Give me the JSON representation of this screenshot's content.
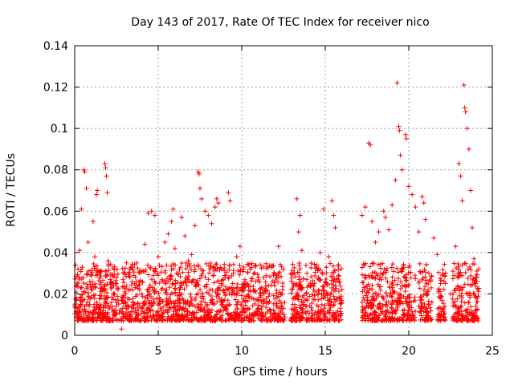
{
  "chart_data": {
    "type": "scatter",
    "title": "Day 143 of 2017, Rate Of TEC Index for receiver nico",
    "xlabel": "GPS time / hours",
    "ylabel": "ROTI / TECUs",
    "xlim": [
      0,
      25
    ],
    "ylim": [
      0,
      0.14
    ],
    "x_ticks": [
      "0",
      "5",
      "10",
      "15",
      "20",
      "25"
    ],
    "y_ticks": [
      "0",
      "0.02",
      "0.04",
      "0.06",
      "0.08",
      "0.1",
      "0.12",
      "0.14"
    ],
    "grid": true,
    "legend": "none",
    "marker": "+",
    "color": "#ff0000",
    "series": [
      {
        "points": [
          [
            0.1,
            0.018
          ],
          [
            0.2,
            0.032
          ],
          [
            0.3,
            0.041
          ],
          [
            0.4,
            0.061
          ],
          [
            0.5,
            0.028
          ],
          [
            0.55,
            0.08
          ],
          [
            0.6,
            0.079
          ],
          [
            0.7,
            0.071
          ],
          [
            0.8,
            0.045
          ],
          [
            0.9,
            0.015
          ],
          [
            1.0,
            0.022
          ],
          [
            1.1,
            0.055
          ],
          [
            1.2,
            0.038
          ],
          [
            1.3,
            0.068
          ],
          [
            1.35,
            0.07
          ],
          [
            1.5,
            0.031
          ],
          [
            1.6,
            0.019
          ],
          [
            1.8,
            0.083
          ],
          [
            1.85,
            0.081
          ],
          [
            1.9,
            0.077
          ],
          [
            1.95,
            0.069
          ],
          [
            2.0,
            0.036
          ],
          [
            2.2,
            0.025
          ],
          [
            2.4,
            0.012
          ],
          [
            2.6,
            0.017
          ],
          [
            2.8,
            0.003
          ],
          [
            2.9,
            0.009
          ],
          [
            3.0,
            0.021
          ],
          [
            3.1,
            0.035
          ],
          [
            3.3,
            0.028
          ],
          [
            3.5,
            0.016
          ],
          [
            3.7,
            0.024
          ],
          [
            3.9,
            0.03
          ],
          [
            4.0,
            0.02
          ],
          [
            4.2,
            0.044
          ],
          [
            4.4,
            0.059
          ],
          [
            4.6,
            0.06
          ],
          [
            4.8,
            0.058
          ],
          [
            5.0,
            0.038
          ],
          [
            5.2,
            0.022
          ],
          [
            5.4,
            0.045
          ],
          [
            5.6,
            0.049
          ],
          [
            5.8,
            0.055
          ],
          [
            5.9,
            0.061
          ],
          [
            6.0,
            0.042
          ],
          [
            6.2,
            0.03
          ],
          [
            6.4,
            0.057
          ],
          [
            6.6,
            0.048
          ],
          [
            6.8,
            0.036
          ],
          [
            7.0,
            0.039
          ],
          [
            7.2,
            0.053
          ],
          [
            7.4,
            0.079
          ],
          [
            7.45,
            0.078
          ],
          [
            7.5,
            0.071
          ],
          [
            7.6,
            0.066
          ],
          [
            7.8,
            0.06
          ],
          [
            8.0,
            0.058
          ],
          [
            8.2,
            0.054
          ],
          [
            8.4,
            0.062
          ],
          [
            8.5,
            0.066
          ],
          [
            8.6,
            0.064
          ],
          [
            8.8,
            0.032
          ],
          [
            9.0,
            0.028
          ],
          [
            9.2,
            0.069
          ],
          [
            9.3,
            0.065
          ],
          [
            9.5,
            0.03
          ],
          [
            9.7,
            0.038
          ],
          [
            9.9,
            0.043
          ],
          [
            10.2,
            0.025
          ],
          [
            10.5,
            0.032
          ],
          [
            10.8,
            0.021
          ],
          [
            11.0,
            0.028
          ],
          [
            11.3,
            0.033
          ],
          [
            11.6,
            0.024
          ],
          [
            11.9,
            0.029
          ],
          [
            12.2,
            0.043
          ],
          [
            12.4,
            0.02
          ],
          [
            13.3,
            0.066
          ],
          [
            13.5,
            0.058
          ],
          [
            13.4,
            0.05
          ],
          [
            13.6,
            0.041
          ],
          [
            13.9,
            0.03
          ],
          [
            14.1,
            0.024
          ],
          [
            14.3,
            0.022
          ],
          [
            14.5,
            0.034
          ],
          [
            14.7,
            0.04
          ],
          [
            14.9,
            0.061
          ],
          [
            15.2,
            0.038
          ],
          [
            15.4,
            0.065
          ],
          [
            15.5,
            0.058
          ],
          [
            15.6,
            0.052
          ],
          [
            15.8,
            0.029
          ],
          [
            17.2,
            0.058
          ],
          [
            17.4,
            0.062
          ],
          [
            17.6,
            0.093
          ],
          [
            17.7,
            0.092
          ],
          [
            17.8,
            0.055
          ],
          [
            18.0,
            0.045
          ],
          [
            18.2,
            0.05
          ],
          [
            18.5,
            0.06
          ],
          [
            18.6,
            0.057
          ],
          [
            18.8,
            0.051
          ],
          [
            19.0,
            0.063
          ],
          [
            19.2,
            0.075
          ],
          [
            19.3,
            0.122
          ],
          [
            19.4,
            0.101
          ],
          [
            19.45,
            0.099
          ],
          [
            19.5,
            0.087
          ],
          [
            19.6,
            0.08
          ],
          [
            19.8,
            0.097
          ],
          [
            19.85,
            0.095
          ],
          [
            20.0,
            0.072
          ],
          [
            20.2,
            0.068
          ],
          [
            20.4,
            0.062
          ],
          [
            20.6,
            0.05
          ],
          [
            20.8,
            0.067
          ],
          [
            20.9,
            0.064
          ],
          [
            21.0,
            0.056
          ],
          [
            21.2,
            0.03
          ],
          [
            21.5,
            0.047
          ],
          [
            21.7,
            0.039
          ],
          [
            21.9,
            0.025
          ],
          [
            22.2,
            0.03
          ],
          [
            22.5,
            0.02
          ],
          [
            22.8,
            0.043
          ],
          [
            23.0,
            0.083
          ],
          [
            23.1,
            0.077
          ],
          [
            23.2,
            0.065
          ],
          [
            23.3,
            0.121
          ],
          [
            23.35,
            0.11
          ],
          [
            23.4,
            0.108
          ],
          [
            23.5,
            0.1
          ],
          [
            23.6,
            0.09
          ],
          [
            23.7,
            0.07
          ],
          [
            23.8,
            0.052
          ],
          [
            23.9,
            0.037
          ],
          [
            24.0,
            0.025
          ],
          [
            24.1,
            0.018
          ]
        ]
      }
    ]
  }
}
